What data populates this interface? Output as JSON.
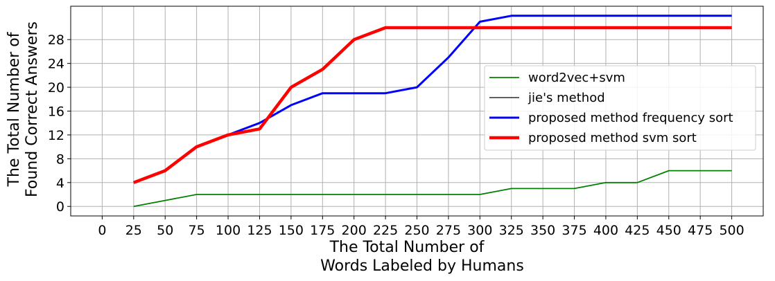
{
  "chart_data": {
    "type": "line",
    "xlabel": [
      "The Total Number of",
      "Words Labeled by Humans"
    ],
    "ylabel": [
      "The Total Number of",
      "Found Correct Answers"
    ],
    "x_ticks": [
      0,
      25,
      50,
      75,
      100,
      125,
      150,
      175,
      200,
      225,
      250,
      275,
      300,
      325,
      350,
      375,
      400,
      425,
      450,
      475,
      500
    ],
    "y_ticks": [
      0,
      4,
      8,
      12,
      16,
      20,
      24,
      28
    ],
    "xlim": [
      -25,
      525
    ],
    "ylim": [
      -1.6,
      33.6
    ],
    "grid": true,
    "legend_position": "center-right",
    "series": [
      {
        "name": "word2vec+svm",
        "color": "#008000",
        "linewidth": 1.8,
        "x": [
          25,
          50,
          75,
          100,
          125,
          150,
          175,
          200,
          225,
          250,
          275,
          300,
          325,
          350,
          375,
          400,
          425,
          450,
          475,
          500
        ],
        "y": [
          0,
          1,
          2,
          2,
          2,
          2,
          2,
          2,
          2,
          2,
          2,
          2,
          3,
          3,
          3,
          4,
          4,
          6,
          6,
          6
        ]
      },
      {
        "name": "jie's method",
        "color": "#000000",
        "linewidth": 1.2,
        "x": [],
        "y": []
      },
      {
        "name": "proposed method frequency sort",
        "color": "#0000ff",
        "linewidth": 3,
        "x": [
          25,
          50,
          75,
          100,
          125,
          150,
          175,
          200,
          225,
          250,
          275,
          300,
          325,
          350,
          375,
          400,
          425,
          450,
          475,
          500
        ],
        "y": [
          4,
          6,
          10,
          12,
          14,
          17,
          19,
          19,
          19,
          20,
          25,
          31,
          32,
          32,
          32,
          32,
          32,
          32,
          32,
          32
        ]
      },
      {
        "name": "proposed method svm sort",
        "color": "#ff0000",
        "linewidth": 4.5,
        "x": [
          25,
          50,
          75,
          100,
          125,
          150,
          175,
          200,
          225,
          250,
          275,
          300,
          325,
          350,
          375,
          400,
          425,
          450,
          475,
          500
        ],
        "y": [
          4,
          6,
          10,
          12,
          13,
          20,
          23,
          28,
          30,
          30,
          30,
          30,
          30,
          30,
          30,
          30,
          30,
          30,
          30,
          30
        ]
      }
    ]
  }
}
